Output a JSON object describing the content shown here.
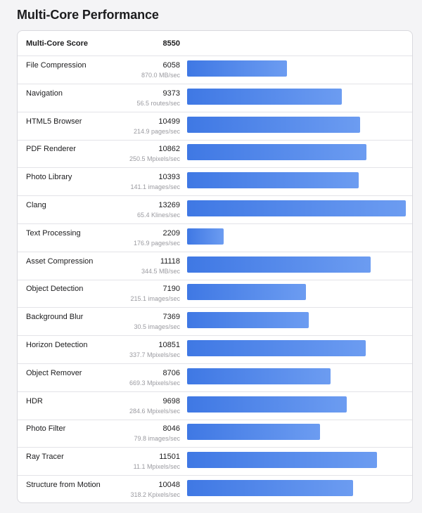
{
  "page": {
    "title": "Multi-Core Performance"
  },
  "summary": {
    "label": "Multi-Core Score",
    "score": "8550"
  },
  "colors": {
    "bar_start": "#3f78e4",
    "bar_end": "#6c9cf1",
    "background": "#f4f4f6"
  },
  "chart_data": {
    "type": "bar",
    "orientation": "horizontal",
    "title": "Multi-Core Performance",
    "xlim": [
      0,
      13269
    ],
    "grid": false,
    "rows": [
      {
        "name": "File Compression",
        "score": "6058",
        "rate": "870.0 MB/sec",
        "value": 6058
      },
      {
        "name": "Navigation",
        "score": "9373",
        "rate": "56.5 routes/sec",
        "value": 9373
      },
      {
        "name": "HTML5 Browser",
        "score": "10499",
        "rate": "214.9 pages/sec",
        "value": 10499
      },
      {
        "name": "PDF Renderer",
        "score": "10862",
        "rate": "250.5 Mpixels/sec",
        "value": 10862
      },
      {
        "name": "Photo Library",
        "score": "10393",
        "rate": "141.1 images/sec",
        "value": 10393
      },
      {
        "name": "Clang",
        "score": "13269",
        "rate": "65.4 Klines/sec",
        "value": 13269
      },
      {
        "name": "Text Processing",
        "score": "2209",
        "rate": "176.9 pages/sec",
        "value": 2209
      },
      {
        "name": "Asset Compression",
        "score": "11118",
        "rate": "344.5 MB/sec",
        "value": 11118
      },
      {
        "name": "Object Detection",
        "score": "7190",
        "rate": "215.1 images/sec",
        "value": 7190
      },
      {
        "name": "Background Blur",
        "score": "7369",
        "rate": "30.5 images/sec",
        "value": 7369
      },
      {
        "name": "Horizon Detection",
        "score": "10851",
        "rate": "337.7 Mpixels/sec",
        "value": 10851
      },
      {
        "name": "Object Remover",
        "score": "8706",
        "rate": "669.3 Mpixels/sec",
        "value": 8706
      },
      {
        "name": "HDR",
        "score": "9698",
        "rate": "284.6 Mpixels/sec",
        "value": 9698
      },
      {
        "name": "Photo Filter",
        "score": "8046",
        "rate": "79.8 images/sec",
        "value": 8046
      },
      {
        "name": "Ray Tracer",
        "score": "11501",
        "rate": "11.1 Mpixels/sec",
        "value": 11501
      },
      {
        "name": "Structure from Motion",
        "score": "10048",
        "rate": "318.2 Kpixels/sec",
        "value": 10048
      }
    ]
  }
}
